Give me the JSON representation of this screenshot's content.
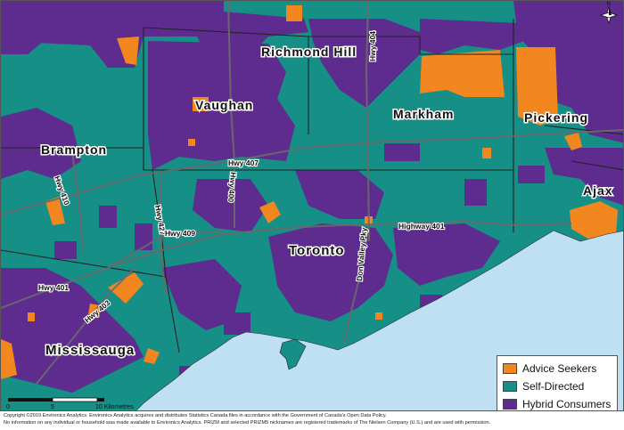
{
  "colors": {
    "water": "#bfe0f3",
    "land_base": "#168f86",
    "advice_seekers": "#f2861f",
    "self_directed": "#168f86",
    "hybrid_consumers": "#5e2c8e",
    "road": "#6b6b6b",
    "boundary": "#222222"
  },
  "places": [
    {
      "id": "richmond-hill",
      "label": "Richmond Hill"
    },
    {
      "id": "vaughan",
      "label": "Vaughan"
    },
    {
      "id": "markham",
      "label": "Markham"
    },
    {
      "id": "pickering",
      "label": "Pickering"
    },
    {
      "id": "brampton",
      "label": "Brampton"
    },
    {
      "id": "ajax",
      "label": "Ajax"
    },
    {
      "id": "toronto",
      "label": "Toronto"
    },
    {
      "id": "mississauga",
      "label": "Mississauga"
    }
  ],
  "highways": [
    {
      "id": "hwy-404",
      "label": "Hwy 404"
    },
    {
      "id": "hwy-407",
      "label": "Hwy 407"
    },
    {
      "id": "hwy-410",
      "label": "Hwy 410"
    },
    {
      "id": "hwy-400",
      "label": "Hwy 400"
    },
    {
      "id": "hwy-427",
      "label": "Hwy 427"
    },
    {
      "id": "hwy-409",
      "label": "Hwy 409"
    },
    {
      "id": "highway-401-east",
      "label": "Highway 401"
    },
    {
      "id": "don-valley-pky",
      "label": "Don Valley Pky"
    },
    {
      "id": "hwy-401-west",
      "label": "Hwy 401"
    },
    {
      "id": "hwy-403",
      "label": "Hwy 403"
    }
  ],
  "legend": [
    {
      "label": "Advice Seekers",
      "color": "#f2861f"
    },
    {
      "label": "Self-Directed",
      "color": "#168f86"
    },
    {
      "label": "Hybrid Consumers",
      "color": "#5e2c8e"
    }
  ],
  "scale_bar": {
    "ticks": [
      "0",
      "5",
      "10 Kilometres"
    ]
  },
  "north_arrow": {
    "icon": "north-arrow-icon",
    "letter": "N"
  },
  "footer": {
    "line1": "Copyright ©2019 Environics Analytics. Environics Analytics acquires and distributes Statistics Canada files in accordance with the Government of Canada's Open Data Policy.",
    "line2": "No information on any individual or household was made available to Environics Analytics. PRIZM and selected PRIZM5 nicknames are registered trademarks of The Nielsen Company (U.S.) and are used with permission."
  }
}
